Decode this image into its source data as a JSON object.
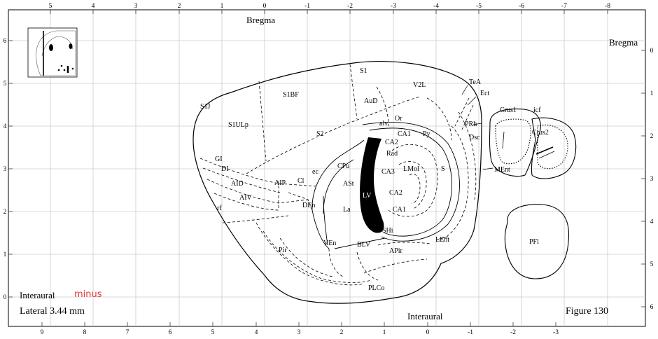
{
  "axes": {
    "top": [
      "5",
      "4",
      "3",
      "2",
      "1",
      "0",
      "-1",
      "-2",
      "-3",
      "-4",
      "-5",
      "-6",
      "-7",
      "-8"
    ],
    "bottom": [
      "9",
      "8",
      "7",
      "6",
      "5",
      "4",
      "3",
      "2",
      "1",
      "0",
      "-1",
      "-2",
      "-3"
    ],
    "left": [
      "6",
      "5",
      "4",
      "3",
      "2",
      "1",
      "0"
    ],
    "right": [
      "0",
      "1",
      "2",
      "3",
      "4",
      "5",
      "6"
    ]
  },
  "text": {
    "bregma_top": "Bregma",
    "bregma_right": "Bregma",
    "interaural_left": "Interaural",
    "interaural_bottom": "Interaural",
    "minus": "minus",
    "lateral": "Lateral 3.44 mm",
    "figure": "Figure 130"
  },
  "regions": {
    "S1": "S1",
    "V2L": "V2L",
    "TeA": "TeA",
    "Ect": "Ect",
    "S1J": "S1J",
    "S1BF": "S1BF",
    "AuD": "AuD",
    "Cru1": "Crus1",
    "icf": "icf",
    "S1ULp": "S1ULp",
    "alv": "alv",
    "Or": "Or",
    "CA1a": "CA1",
    "Py": "Py",
    "PRh": "PRh",
    "Dsc": "Dsc",
    "Crus2": "Crus2",
    "S2": "S2",
    "CA2a": "CA2",
    "Rad": "Rad",
    "GI": "GI",
    "DI": "DI",
    "ec": "ec",
    "CPu": "CPu",
    "CA3": "CA3",
    "LMol": "LMol",
    "S": "S",
    "MEnt": "MEnt",
    "AID": "AID",
    "AIP": "AIP",
    "Cl": "Cl",
    "ASt": "ASt",
    "LV": "LV",
    "CA2b": "CA2",
    "AIV": "AIV",
    "DEn": "DEn",
    "rf": "rf",
    "La": "La",
    "CA1b": "CA1",
    "SHi": "SHi",
    "PFl": "PFl",
    "VEn": "VEn",
    "LEnt": "LEnt",
    "BLV": "BLV",
    "Pir": "Pir",
    "APir": "APir",
    "PLCo": "PLCo"
  },
  "colors": {
    "minus": "#e53935",
    "ink": "#000000",
    "grid": "#cccccc"
  },
  "icons": {
    "inset": "brain-section-thumbnail-icon"
  }
}
